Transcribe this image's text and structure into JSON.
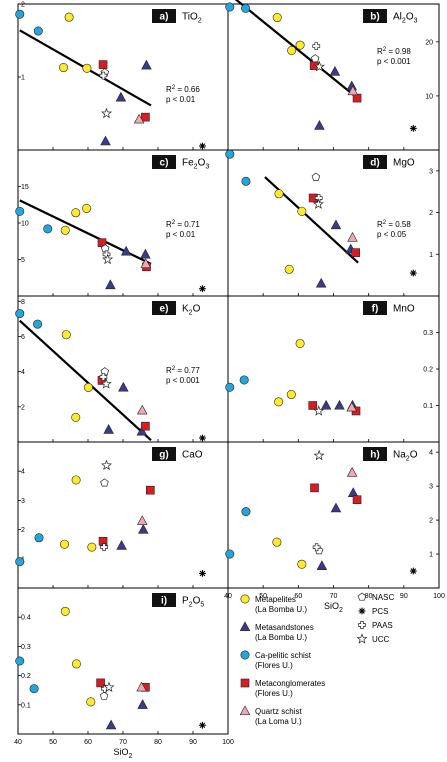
{
  "chart_data": [
    {
      "type": "scatter",
      "id": "a",
      "badge": "a)",
      "oxide": "TiO",
      "oxide_sub": "2",
      "ylim": [
        0,
        2
      ],
      "yticks": [
        1,
        2
      ],
      "points": [
        {
          "g": "blue",
          "x": 40.5,
          "y": 1.86
        },
        {
          "g": "blue",
          "x": 45.8,
          "y": 1.63
        },
        {
          "g": "yel",
          "x": 54.6,
          "y": 1.82
        },
        {
          "g": "yel",
          "x": 53,
          "y": 1.13
        },
        {
          "g": "yel",
          "x": 59.7,
          "y": 1.12
        },
        {
          "g": "tri",
          "x": 65,
          "y": 0.12
        },
        {
          "g": "tri",
          "x": 69.4,
          "y": 0.72
        },
        {
          "g": "tri",
          "x": 76.7,
          "y": 1.16
        },
        {
          "g": "red",
          "x": 64.3,
          "y": 1.17
        },
        {
          "g": "red",
          "x": 76.4,
          "y": 0.45
        },
        {
          "g": "pink",
          "x": 74.6,
          "y": 0.42
        },
        {
          "g": "nasc",
          "x": 64.8,
          "y": 1.06
        },
        {
          "g": "paas",
          "x": 64.4,
          "y": 1.02
        },
        {
          "g": "ucc",
          "x": 65.3,
          "y": 0.5
        },
        {
          "g": "pcs",
          "x": 92.7,
          "y": -0.05
        }
      ],
      "fit": [
        [
          40.5,
          1.64
        ],
        [
          78,
          0.61
        ]
      ],
      "r2": "0.66",
      "p": "p < 0.01"
    },
    {
      "type": "scatter",
      "id": "b",
      "badge": "b)",
      "oxide": "Al",
      "oxide_sub": "2",
      "oxide_tail": "O",
      "oxide_sub2": "3",
      "ylim": [
        0,
        27
      ],
      "yticks": [
        10,
        20
      ],
      "points": [
        {
          "g": "blue",
          "x": 40.5,
          "y": 28
        },
        {
          "g": "blue",
          "x": 45,
          "y": 26.2
        },
        {
          "g": "yel",
          "x": 54,
          "y": 24.5
        },
        {
          "g": "yel",
          "x": 60.5,
          "y": 19.4
        },
        {
          "g": "yel",
          "x": 58.1,
          "y": 18.4
        },
        {
          "g": "tri",
          "x": 66,
          "y": 4.5
        },
        {
          "g": "tri",
          "x": 70.4,
          "y": 14.5
        },
        {
          "g": "tri",
          "x": 75.2,
          "y": 11.8
        },
        {
          "g": "red",
          "x": 64.5,
          "y": 15.6
        },
        {
          "g": "red",
          "x": 76.7,
          "y": 9.6
        },
        {
          "g": "pink",
          "x": 75.5,
          "y": 10.9
        },
        {
          "g": "nasc",
          "x": 64.8,
          "y": 16.9
        },
        {
          "g": "paas",
          "x": 65.1,
          "y": 19.2
        },
        {
          "g": "ucc",
          "x": 66,
          "y": 15.4
        },
        {
          "g": "pcs",
          "x": 92.7,
          "y": 4
        }
      ],
      "fit": [
        [
          40.8,
          28.6
        ],
        [
          77,
          9.5
        ]
      ],
      "r2": "0.98",
      "p": "p < 0.001"
    },
    {
      "type": "scatter",
      "id": "c",
      "badge": "c)",
      "oxide": "Fe",
      "oxide_sub": "2",
      "oxide_tail": "O",
      "oxide_sub2": "3",
      "ylim": [
        0,
        20
      ],
      "yticks": [
        5,
        10,
        15
      ],
      "points": [
        {
          "g": "blue",
          "x": 40.5,
          "y": 11.6
        },
        {
          "g": "blue",
          "x": 48.5,
          "y": 9.2
        },
        {
          "g": "yel",
          "x": 53.5,
          "y": 9
        },
        {
          "g": "yel",
          "x": 56.5,
          "y": 11.4
        },
        {
          "g": "yel",
          "x": 59.6,
          "y": 12
        },
        {
          "g": "tri",
          "x": 66.4,
          "y": 1.5
        },
        {
          "g": "tri",
          "x": 70.9,
          "y": 6.1
        },
        {
          "g": "tri",
          "x": 76.4,
          "y": 5.7
        },
        {
          "g": "red",
          "x": 64,
          "y": 7.3
        },
        {
          "g": "red",
          "x": 76.7,
          "y": 4
        },
        {
          "g": "pink",
          "x": 76.5,
          "y": 4.4
        },
        {
          "g": "nasc",
          "x": 64.9,
          "y": 6.5
        },
        {
          "g": "paas",
          "x": 65.3,
          "y": 5.7
        },
        {
          "g": "ucc",
          "x": 65.6,
          "y": 5
        },
        {
          "g": "pcs",
          "x": 92.7,
          "y": 1
        }
      ],
      "fit": [
        [
          40.5,
          13.1
        ],
        [
          78,
          4.4
        ]
      ],
      "r2": "0.71",
      "p": "p < 0.01"
    },
    {
      "type": "scatter",
      "id": "d",
      "badge": "d)",
      "oxide": "MgO",
      "ylim": [
        0,
        3.5
      ],
      "yticks": [
        1,
        2,
        3
      ],
      "points": [
        {
          "g": "blue",
          "x": 40.5,
          "y": 3.4
        },
        {
          "g": "blue",
          "x": 45.1,
          "y": 2.75
        },
        {
          "g": "yel",
          "x": 54.5,
          "y": 2.45
        },
        {
          "g": "yel",
          "x": 61,
          "y": 2.03
        },
        {
          "g": "yel",
          "x": 57.4,
          "y": 0.64
        },
        {
          "g": "tri",
          "x": 66.5,
          "y": 0.3
        },
        {
          "g": "tri",
          "x": 70.7,
          "y": 1.7
        },
        {
          "g": "tri",
          "x": 74.9,
          "y": 1.12
        },
        {
          "g": "red",
          "x": 64.2,
          "y": 2.35
        },
        {
          "g": "red",
          "x": 76.3,
          "y": 1.04
        },
        {
          "g": "pink",
          "x": 75.4,
          "y": 1.4
        },
        {
          "g": "nasc",
          "x": 65,
          "y": 2.85
        },
        {
          "g": "paas",
          "x": 65.8,
          "y": 2.35
        },
        {
          "g": "ucc",
          "x": 65.7,
          "y": 2.2
        },
        {
          "g": "pcs",
          "x": 92.7,
          "y": 0.55
        }
      ],
      "fit": [
        [
          50.5,
          2.85
        ],
        [
          77,
          0.8
        ]
      ],
      "r2": "0.58",
      "p": "p < 0.05"
    },
    {
      "type": "scatter",
      "id": "e",
      "badge": "e)",
      "oxide": "K",
      "oxide_sub": "2",
      "oxide_tail": "O",
      "ylim": [
        0,
        8.3
      ],
      "yticks": [
        2,
        4,
        6,
        8
      ],
      "points": [
        {
          "g": "blue",
          "x": 40.5,
          "y": 7.3
        },
        {
          "g": "blue",
          "x": 45.6,
          "y": 6.7
        },
        {
          "g": "yel",
          "x": 53.8,
          "y": 6.1
        },
        {
          "g": "yel",
          "x": 60.1,
          "y": 3.1
        },
        {
          "g": "yel",
          "x": 56.5,
          "y": 1.4
        },
        {
          "g": "tri",
          "x": 65.9,
          "y": 0.7
        },
        {
          "g": "tri",
          "x": 70.1,
          "y": 3.1
        },
        {
          "g": "tri",
          "x": 75.4,
          "y": 0.6
        },
        {
          "g": "red",
          "x": 64,
          "y": 3.5
        },
        {
          "g": "red",
          "x": 76.4,
          "y": 0.9
        },
        {
          "g": "pink",
          "x": 75.5,
          "y": 1.8
        },
        {
          "g": "nasc",
          "x": 64.8,
          "y": 4
        },
        {
          "g": "paas",
          "x": 64.4,
          "y": 3.7
        },
        {
          "g": "ucc",
          "x": 65.2,
          "y": 3.3
        },
        {
          "g": "pcs",
          "x": 92.7,
          "y": 0
        }
      ],
      "fit": [
        [
          40.5,
          6.9
        ],
        [
          78,
          0.1
        ]
      ],
      "r2": "0.77",
      "p": "p < 0.001"
    },
    {
      "type": "scatter",
      "id": "f",
      "badge": "f)",
      "oxide": "MnO",
      "ylim": [
        0,
        0.4
      ],
      "yticks": [
        0.1,
        0.2,
        0.3
      ],
      "points": [
        {
          "g": "blue",
          "x": 40.5,
          "y": 0.15
        },
        {
          "g": "blue",
          "x": 44.6,
          "y": 0.17
        },
        {
          "g": "yel",
          "x": 60.5,
          "y": 0.27
        },
        {
          "g": "yel",
          "x": 58,
          "y": 0.13
        },
        {
          "g": "yel",
          "x": 54.4,
          "y": 0.11
        },
        {
          "g": "tri",
          "x": 67.9,
          "y": 0.1
        },
        {
          "g": "tri",
          "x": 71.7,
          "y": 0.1
        },
        {
          "g": "tri",
          "x": 75.4,
          "y": 0.1
        },
        {
          "g": "red",
          "x": 64.1,
          "y": 0.1
        },
        {
          "g": "red",
          "x": 76.4,
          "y": 0.085
        },
        {
          "g": "pink",
          "x": 75.2,
          "y": 0.095
        },
        {
          "g": "ucc",
          "x": 65.8,
          "y": 0.085
        }
      ]
    },
    {
      "type": "scatter",
      "id": "g",
      "badge": "g)",
      "oxide": "CaO",
      "ylim": [
        0,
        5
      ],
      "yticks": [
        1,
        2,
        3,
        4
      ],
      "points": [
        {
          "g": "blue",
          "x": 40.5,
          "y": 0.9
        },
        {
          "g": "blue",
          "x": 46,
          "y": 1.72
        },
        {
          "g": "yel",
          "x": 56.6,
          "y": 3.7
        },
        {
          "g": "yel",
          "x": 53.3,
          "y": 1.5
        },
        {
          "g": "yel",
          "x": 61.1,
          "y": 1.4
        },
        {
          "g": "tri",
          "x": 69.6,
          "y": 1.45
        },
        {
          "g": "tri",
          "x": 75.8,
          "y": 2
        },
        {
          "g": "red",
          "x": 64.3,
          "y": 1.6
        },
        {
          "g": "red",
          "x": 77.8,
          "y": 3.35
        },
        {
          "g": "pink",
          "x": 75.5,
          "y": 2.3
        },
        {
          "g": "nasc",
          "x": 64.7,
          "y": 3.6
        },
        {
          "g": "paas",
          "x": 64.6,
          "y": 1.4
        },
        {
          "g": "ucc",
          "x": 65.3,
          "y": 4.2
        },
        {
          "g": "pcs",
          "x": 92.7,
          "y": 0.5
        }
      ]
    },
    {
      "type": "scatter",
      "id": "h",
      "badge": "h)",
      "oxide": "Na",
      "oxide_sub": "2",
      "oxide_tail": "O",
      "ylim": [
        0,
        4.3
      ],
      "yticks": [
        1,
        2,
        3,
        4
      ],
      "points": [
        {
          "g": "blue",
          "x": 40.5,
          "y": 1
        },
        {
          "g": "blue",
          "x": 45.1,
          "y": 2.25
        },
        {
          "g": "yel",
          "x": 53.9,
          "y": 1.35
        },
        {
          "g": "yel",
          "x": 61,
          "y": 0.7
        },
        {
          "g": "tri",
          "x": 66.7,
          "y": 0.65
        },
        {
          "g": "tri",
          "x": 70.7,
          "y": 2.35
        },
        {
          "g": "tri",
          "x": 75.6,
          "y": 2.8
        },
        {
          "g": "red",
          "x": 64.6,
          "y": 2.95
        },
        {
          "g": "red",
          "x": 76.7,
          "y": 2.6
        },
        {
          "g": "pink",
          "x": 75.3,
          "y": 3.4
        },
        {
          "g": "nasc",
          "x": 65.9,
          "y": 1.1
        },
        {
          "g": "paas",
          "x": 65.2,
          "y": 1.2
        },
        {
          "g": "ucc",
          "x": 65.9,
          "y": 3.9
        },
        {
          "g": "pcs",
          "x": 92.7,
          "y": 0.5
        }
      ]
    },
    {
      "type": "scatter",
      "id": "i",
      "badge": "i)",
      "oxide": "P",
      "oxide_sub": "2",
      "oxide_tail": "O",
      "oxide_sub2": "5",
      "ylim": [
        0,
        0.5
      ],
      "yticks": [
        0.1,
        0.2,
        0.3,
        0.4
      ],
      "points": [
        {
          "g": "blue",
          "x": 40.5,
          "y": 0.25
        },
        {
          "g": "blue",
          "x": 44.6,
          "y": 0.155
        },
        {
          "g": "yel",
          "x": 53.5,
          "y": 0.42
        },
        {
          "g": "yel",
          "x": 56.7,
          "y": 0.24
        },
        {
          "g": "yel",
          "x": 60.8,
          "y": 0.11
        },
        {
          "g": "tri",
          "x": 66.6,
          "y": 0.03
        },
        {
          "g": "tri",
          "x": 75.6,
          "y": 0.1
        },
        {
          "g": "red",
          "x": 63.6,
          "y": 0.175
        },
        {
          "g": "red",
          "x": 76.4,
          "y": 0.16
        },
        {
          "g": "pink",
          "x": 75.3,
          "y": 0.16
        },
        {
          "g": "nasc",
          "x": 64.6,
          "y": 0.13
        },
        {
          "g": "paas",
          "x": 64.8,
          "y": 0.155
        },
        {
          "g": "ucc",
          "x": 66,
          "y": 0.16
        },
        {
          "g": "pcs",
          "x": 92.7,
          "y": 0.03
        }
      ]
    }
  ],
  "axes": {
    "xlim": [
      40,
      100
    ],
    "xticks": [
      40,
      50,
      60,
      70,
      80,
      90,
      100
    ],
    "xlabel": "SiO",
    "xlabel_sub": "2",
    "r2_prefix": "R",
    "r2_sup": "2",
    "r2_eq": " = "
  },
  "legend": {
    "left": [
      {
        "g": "yel",
        "line1": "Metapelites",
        "line2": "(La Bomba U.)"
      },
      {
        "g": "tri",
        "line1": "Metasandstones",
        "line2": "(La Bomba U.)"
      },
      {
        "g": "blue",
        "line1": "Ca-pelitic schist",
        "line2": "(Flores U.)"
      },
      {
        "g": "red",
        "line1": "Metaconglomerates",
        "line2": "(Flores U.)"
      },
      {
        "g": "pink",
        "line1": "Quartz schist",
        "line2": "(La Loma U.)"
      }
    ],
    "right": [
      {
        "g": "nasc",
        "label": "NASC"
      },
      {
        "g": "pcs",
        "label": "PCS"
      },
      {
        "g": "paas",
        "label": "PAAS"
      },
      {
        "g": "ucc",
        "label": "UCC"
      }
    ]
  },
  "colors": {
    "yel": "#ffea2a",
    "blue": "#22a6dd",
    "tri": "#3b3a8c",
    "red": "#d81d22",
    "pink": "#f0a7b2",
    "badge": "#111111"
  }
}
